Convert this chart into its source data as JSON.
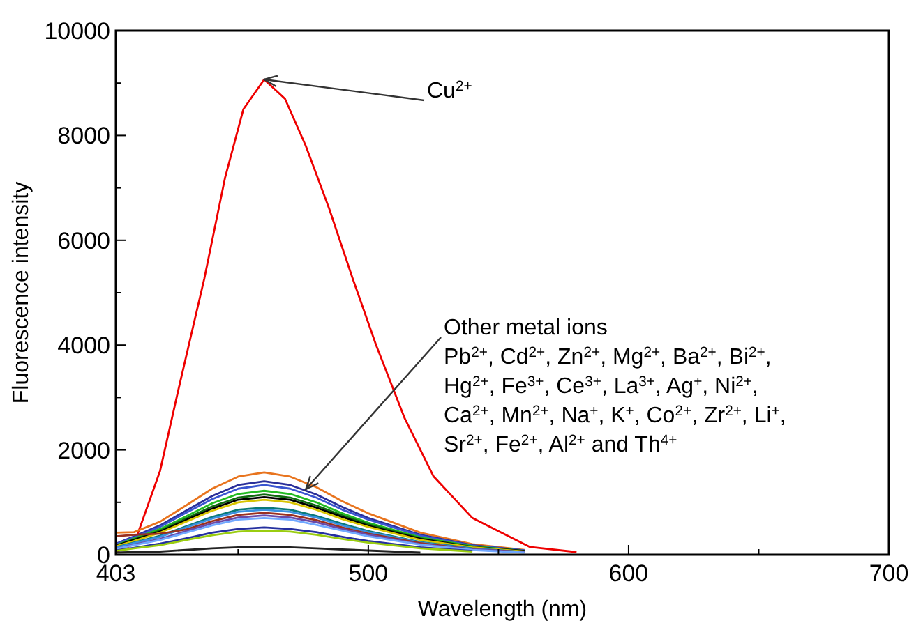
{
  "chart_data": {
    "type": "line",
    "xlabel": "Wavelength (nm)",
    "ylabel": "Fluorescence intensity",
    "xlim": [
      403,
      700
    ],
    "ylim": [
      0,
      10000
    ],
    "xticks": [
      403,
      {
        "value": 450,
        "label": null
      },
      500,
      {
        "value": 550,
        "label": null
      },
      600,
      {
        "value": 650,
        "label": null
      },
      700
    ],
    "yticks": [
      0,
      {
        "value": 1000,
        "label": null
      },
      2000,
      {
        "value": 3000,
        "label": null
      },
      4000,
      {
        "value": 5000,
        "label": null
      },
      6000,
      {
        "value": 7000,
        "label": null
      },
      8000,
      {
        "value": 9000,
        "label": null
      },
      10000
    ],
    "grid": false,
    "marker": "none",
    "line_style": "solid",
    "x": [
      403,
      410,
      420,
      430,
      440,
      450,
      460,
      470,
      480,
      490,
      500,
      520,
      540,
      560
    ],
    "series": [
      {
        "color": "#ee0000",
        "x": [
          403,
          410,
          420,
          427,
          437,
          445,
          452,
          460,
          468,
          476,
          485,
          494,
          503,
          514,
          525,
          540,
          562,
          580
        ],
        "values": [
          50,
          200,
          1600,
          3140,
          5270,
          7200,
          8500,
          9070,
          8700,
          7800,
          6600,
          5270,
          4000,
          2600,
          1500,
          700,
          150,
          50
        ]
      },
      {
        "color": "#e8741e",
        "values": [
          420,
          430,
          630,
          940,
          1260,
          1490,
          1570,
          1490,
          1290,
          1020,
          790,
          420,
          200,
          90
        ]
      },
      {
        "color": "#2a2f9a",
        "values": [
          210,
          350,
          560,
          840,
          1120,
          1330,
          1400,
          1330,
          1150,
          910,
          700,
          380,
          180,
          80
        ]
      },
      {
        "color": "#3a55d0",
        "values": [
          200,
          330,
          530,
          800,
          1060,
          1260,
          1330,
          1260,
          1090,
          860,
          670,
          360,
          170,
          80
        ]
      },
      {
        "color": "#22bb22",
        "values": [
          180,
          310,
          490,
          730,
          980,
          1160,
          1220,
          1160,
          1000,
          790,
          610,
          330,
          160,
          70
        ]
      },
      {
        "color": "#106a10",
        "values": [
          170,
          290,
          460,
          690,
          920,
          1090,
          1150,
          1090,
          940,
          750,
          580,
          310,
          150,
          70
        ]
      },
      {
        "color": "#000000",
        "values": [
          170,
          280,
          440,
          660,
          880,
          1050,
          1100,
          1050,
          900,
          720,
          550,
          300,
          140,
          70
        ]
      },
      {
        "color": "#d8c400",
        "values": [
          160,
          260,
          420,
          630,
          840,
          1000,
          1050,
          1000,
          860,
          680,
          530,
          280,
          140,
          60
        ]
      },
      {
        "color": "#0a7a7a",
        "values": [
          140,
          230,
          360,
          540,
          720,
          860,
          900,
          860,
          740,
          590,
          450,
          240,
          120,
          50
        ]
      },
      {
        "color": "#3a90e0",
        "values": [
          130,
          220,
          340,
          520,
          690,
          820,
          860,
          820,
          710,
          560,
          430,
          230,
          110,
          50
        ]
      },
      {
        "color": "#9a3020",
        "values": [
          350,
          380,
          400,
          480,
          640,
          760,
          800,
          760,
          660,
          520,
          400,
          220,
          100,
          50
        ]
      },
      {
        "color": "#6a4aa8",
        "values": [
          110,
          190,
          300,
          450,
          600,
          710,
          750,
          710,
          620,
          490,
          380,
          200,
          100,
          50
        ]
      },
      {
        "color": "#70a8ff",
        "values": [
          110,
          180,
          280,
          420,
          560,
          670,
          700,
          670,
          570,
          460,
          350,
          190,
          90,
          40
        ]
      },
      {
        "color": "#2530a0",
        "values": [
          80,
          130,
          210,
          310,
          420,
          490,
          520,
          490,
          430,
          340,
          260,
          140,
          70,
          null
        ]
      },
      {
        "color": "#9acd10",
        "values": [
          70,
          120,
          180,
          280,
          370,
          440,
          460,
          440,
          380,
          300,
          230,
          120,
          60,
          null
        ]
      },
      {
        "color": "#222222",
        "values": [
          40,
          50,
          60,
          90,
          120,
          140,
          150,
          140,
          120,
          100,
          80,
          40,
          null,
          null
        ]
      }
    ],
    "annotations": [
      {
        "text": "Cu$^{2+}$",
        "x": 460,
        "y": 9070
      },
      {
        "text": "Other metal ions",
        "x": 476,
        "y": 1250
      },
      "Pb$^{2+}$, Cd$^{2+}$, Zn$^{2+}$, Mg$^{2+}$, Ba$^{2+}$, Bi$^{2+}$,",
      "Hg$^{2+}$, Fe$^{3+}$, Ce$^{3+}$, La$^{3+}$, Ag$^{+}$, Ni$^{2+}$,",
      "Ca$^{2+}$, Mn$^{2+}$, Na$^{+}$, K$^{+}$, Co$^{2+}$, Zr$^{2+}$, Li$^{+}$,",
      "Sr$^{2+}$, Fe$^{2+}$, Al$^{2+}$ and Th$^{4+}$"
    ]
  }
}
